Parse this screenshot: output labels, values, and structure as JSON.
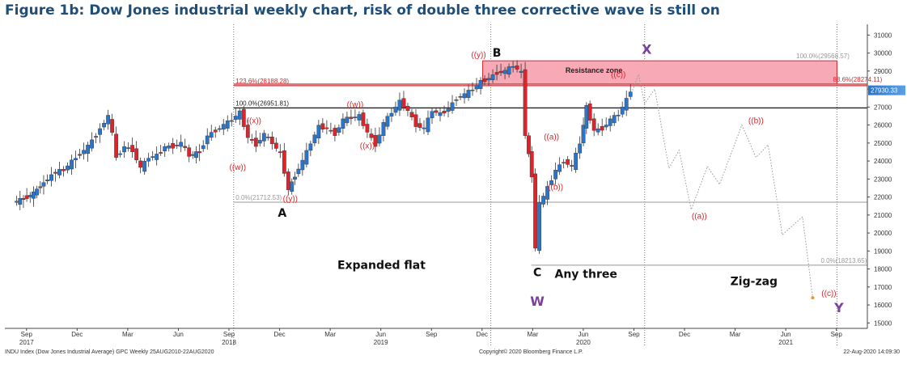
{
  "title": "Figure 1b: Dow Jones industrial weekly chart, risk of double three corrective wave is still on",
  "footer": {
    "left": "INDU Index (Dow Jones Industrial Average) GPC  Weekly 25AUG2010-22AUG2020",
    "center": "Copyright© 2020 Bloomberg Finance L.P.",
    "right": "22-Aug-2020 14:09:30"
  },
  "chart_data": {
    "type": "candlestick",
    "y_axis": {
      "side": "right",
      "ylim": [
        14700,
        31600
      ],
      "ticks": [
        15000,
        16000,
        17000,
        18000,
        19000,
        20000,
        21000,
        22000,
        23000,
        24000,
        25000,
        26000,
        27000,
        28000,
        29000,
        30000,
        31000
      ]
    },
    "x_axis": {
      "month_ticks": [
        {
          "label": "Sep",
          "t": 2017.667
        },
        {
          "label": "Dec",
          "t": 2017.917
        },
        {
          "label": "Mar",
          "t": 2018.167
        },
        {
          "label": "Jun",
          "t": 2018.417
        },
        {
          "label": "Sep",
          "t": 2018.667
        },
        {
          "label": "Dec",
          "t": 2018.917
        },
        {
          "label": "Mar",
          "t": 2019.167
        },
        {
          "label": "Jun",
          "t": 2019.417
        },
        {
          "label": "Sep",
          "t": 2019.667
        },
        {
          "label": "Dec",
          "t": 2019.917
        },
        {
          "label": "Mar",
          "t": 2020.167
        },
        {
          "label": "Jun",
          "t": 2020.417
        },
        {
          "label": "Sep",
          "t": 2020.667
        },
        {
          "label": "Dec",
          "t": 2020.917
        },
        {
          "label": "Mar",
          "t": 2021.167
        },
        {
          "label": "Jun",
          "t": 2021.417
        },
        {
          "label": "Sep",
          "t": 2021.667
        }
      ],
      "year_labels": [
        {
          "label": "2017",
          "t": 2017.667
        },
        {
          "label": "2018",
          "t": 2018.667
        },
        {
          "label": "2019",
          "t": 2019.417
        },
        {
          "label": "2020",
          "t": 2020.417
        },
        {
          "label": "2021",
          "t": 2021.417
        }
      ],
      "year_dividers": [
        2018.69,
        2019.96,
        2020.72,
        2021.67
      ]
    },
    "price_path": [
      [
        2017.61,
        21700
      ],
      [
        2017.66,
        21900
      ],
      [
        2017.71,
        22200
      ],
      [
        2017.76,
        22800
      ],
      [
        2017.82,
        23400
      ],
      [
        2017.86,
        23500
      ],
      [
        2017.92,
        24200
      ],
      [
        2017.98,
        24800
      ],
      [
        2018.04,
        25800
      ],
      [
        2018.08,
        26500
      ],
      [
        2018.1,
        25500
      ],
      [
        2018.12,
        24200
      ],
      [
        2018.16,
        24800
      ],
      [
        2018.2,
        24600
      ],
      [
        2018.24,
        23600
      ],
      [
        2018.28,
        24200
      ],
      [
        2018.32,
        24300
      ],
      [
        2018.36,
        24800
      ],
      [
        2018.4,
        24800
      ],
      [
        2018.44,
        25000
      ],
      [
        2018.48,
        24300
      ],
      [
        2018.53,
        24500
      ],
      [
        2018.57,
        25400
      ],
      [
        2018.61,
        25700
      ],
      [
        2018.65,
        26000
      ],
      [
        2018.69,
        26300
      ],
      [
        2018.73,
        26700
      ],
      [
        2018.77,
        25300
      ],
      [
        2018.81,
        24900
      ],
      [
        2018.85,
        25500
      ],
      [
        2018.89,
        25000
      ],
      [
        2018.93,
        24400
      ],
      [
        2018.97,
        22400
      ],
      [
        2019.0,
        23200
      ],
      [
        2019.04,
        24000
      ],
      [
        2019.08,
        25000
      ],
      [
        2019.12,
        25900
      ],
      [
        2019.16,
        25800
      ],
      [
        2019.2,
        25500
      ],
      [
        2019.24,
        26300
      ],
      [
        2019.28,
        26400
      ],
      [
        2019.32,
        26500
      ],
      [
        2019.36,
        25600
      ],
      [
        2019.4,
        24900
      ],
      [
        2019.44,
        26100
      ],
      [
        2019.48,
        26700
      ],
      [
        2019.52,
        27300
      ],
      [
        2019.56,
        26800
      ],
      [
        2019.6,
        26000
      ],
      [
        2019.64,
        25800
      ],
      [
        2019.68,
        26800
      ],
      [
        2019.72,
        26600
      ],
      [
        2019.76,
        26900
      ],
      [
        2019.8,
        27500
      ],
      [
        2019.84,
        27700
      ],
      [
        2019.88,
        28000
      ],
      [
        2019.92,
        28400
      ],
      [
        2019.96,
        28600
      ],
      [
        2020.0,
        28900
      ],
      [
        2020.04,
        29000
      ],
      [
        2020.08,
        29300
      ],
      [
        2020.12,
        28900
      ],
      [
        2020.14,
        25500
      ],
      [
        2020.17,
        23200
      ],
      [
        2020.19,
        19200
      ],
      [
        2020.21,
        21600
      ],
      [
        2020.25,
        22500
      ],
      [
        2020.29,
        23500
      ],
      [
        2020.33,
        24000
      ],
      [
        2020.37,
        23700
      ],
      [
        2020.41,
        25000
      ],
      [
        2020.44,
        27000
      ],
      [
        2020.48,
        25700
      ],
      [
        2020.52,
        25800
      ],
      [
        2020.56,
        26300
      ],
      [
        2020.6,
        26600
      ],
      [
        2020.64,
        27400
      ],
      [
        2020.66,
        27930
      ]
    ],
    "projection_path": [
      [
        2020.66,
        27930
      ],
      [
        2020.69,
        28800
      ],
      [
        2020.72,
        27200
      ],
      [
        2020.77,
        28000
      ],
      [
        2020.84,
        23600
      ],
      [
        2020.89,
        24600
      ],
      [
        2020.95,
        21300
      ],
      [
        2021.03,
        23700
      ],
      [
        2021.09,
        22700
      ],
      [
        2021.2,
        26000
      ],
      [
        2021.27,
        24200
      ],
      [
        2021.33,
        24900
      ],
      [
        2021.4,
        19900
      ],
      [
        2021.5,
        20900
      ],
      [
        2021.55,
        16400
      ]
    ],
    "fib_levels": [
      {
        "label": "100.0%(29568.57)",
        "value": 29568.57,
        "color": "#999999"
      },
      {
        "label": "88.6%(28274.11)",
        "value": 28274.11,
        "color": "#d9262c"
      },
      {
        "label": "123.6%(28188.28)",
        "value": 28188.28,
        "color": "#d9262c"
      },
      {
        "label": "100.0%(26951.81)",
        "value": 26951.81,
        "color": "#222222"
      },
      {
        "label": "0.0%(21712.53)",
        "value": 21712.53,
        "color": "#999999"
      },
      {
        "label": "0.0%(18213.65)",
        "value": 18213.65,
        "color": "#999999"
      }
    ],
    "last_price": {
      "label": "27930.33",
      "value": 27930.33,
      "color": "#2a74c9"
    },
    "resistance_zone": {
      "label": "Resistance zone",
      "from": 28274.11,
      "to": 29568.57,
      "t_start": 2019.92,
      "t_end": 2021.67
    },
    "wave_labels": [
      {
        "text": "((x))",
        "t": 2018.79,
        "v": 26100
      },
      {
        "text": "((w))",
        "t": 2018.71,
        "v": 23500
      },
      {
        "text": "((y))",
        "t": 2018.97,
        "v": 21750
      },
      {
        "text": "((w))",
        "t": 2019.29,
        "v": 27000
      },
      {
        "text": "((x))",
        "t": 2019.35,
        "v": 24700
      },
      {
        "text": "((y))",
        "t": 2019.9,
        "v": 29750
      },
      {
        "text": "((a))",
        "t": 2020.26,
        "v": 25200
      },
      {
        "text": "((b))",
        "t": 2020.28,
        "v": 22400
      },
      {
        "text": "((c))",
        "t": 2020.59,
        "v": 28650
      },
      {
        "text": "((a))",
        "t": 2020.99,
        "v": 20800
      },
      {
        "text": "((b))",
        "t": 2021.27,
        "v": 26100
      },
      {
        "text": "((c))",
        "t": 2021.63,
        "v": 16500
      }
    ],
    "big_labels": [
      {
        "text": "B",
        "t": 2019.99,
        "v": 29800
      },
      {
        "text": "A",
        "t": 2018.93,
        "v": 20900
      },
      {
        "text": "C",
        "t": 2020.19,
        "v": 17600
      },
      {
        "text": "Expanded flat",
        "t": 2019.42,
        "v": 18000
      },
      {
        "text": "Any three",
        "t": 2020.43,
        "v": 17500
      },
      {
        "text": "Zig-zag",
        "t": 2021.26,
        "v": 17100
      }
    ],
    "purple_labels": [
      {
        "text": "X",
        "t": 2020.73,
        "v": 29950
      },
      {
        "text": "W",
        "t": 2020.19,
        "v": 15950
      },
      {
        "text": "Y",
        "t": 2021.68,
        "v": 15600
      }
    ],
    "colors": {
      "up": "#2a74c9",
      "down": "#d9262c"
    }
  }
}
